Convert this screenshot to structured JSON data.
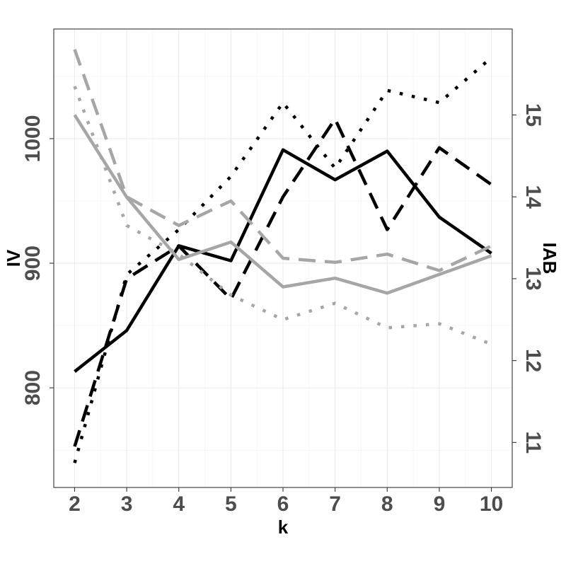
{
  "chart_data": {
    "type": "line",
    "xlabel": "k",
    "ylabel_left": "IV",
    "ylabel_right": "IAB",
    "x": [
      2,
      3,
      4,
      5,
      6,
      7,
      8,
      9,
      10
    ],
    "xlim": [
      1.6,
      10.4
    ],
    "ylim_left": [
      720,
      1088
    ],
    "ylim_right": [
      10.45,
      16.05
    ],
    "y_ticks_left": [
      800,
      900,
      1000
    ],
    "y_ticks_right": [
      11,
      12,
      13,
      14,
      15
    ],
    "grid": true,
    "legend": "none",
    "series": [
      {
        "axis": "left",
        "color": "#000000",
        "dash": "solid",
        "values": [
          813,
          846,
          914,
          902,
          991,
          967,
          990,
          937,
          908
        ]
      },
      {
        "axis": "right",
        "color": "#000000",
        "dash": "dashed",
        "values": [
          10.95,
          13.0,
          13.4,
          12.75,
          14.0,
          14.95,
          13.6,
          14.6,
          14.15
        ]
      },
      {
        "axis": "right",
        "color": "#000000",
        "dash": "dotted",
        "values": [
          10.75,
          13.05,
          13.6,
          14.25,
          15.15,
          14.35,
          15.3,
          15.15,
          15.7
        ]
      },
      {
        "axis": "left",
        "color": "#a6a6a6",
        "dash": "solid",
        "values": [
          1019,
          953,
          903,
          917,
          881,
          888,
          876,
          891,
          906
        ]
      },
      {
        "axis": "right",
        "color": "#a6a6a6",
        "dash": "dashed",
        "values": [
          15.8,
          14.0,
          13.65,
          13.95,
          13.25,
          13.2,
          13.3,
          13.1,
          13.4
        ]
      },
      {
        "axis": "right",
        "color": "#a6a6a6",
        "dash": "dotted",
        "values": [
          15.35,
          13.65,
          13.3,
          12.8,
          12.5,
          12.7,
          12.4,
          12.45,
          12.2
        ]
      }
    ]
  }
}
